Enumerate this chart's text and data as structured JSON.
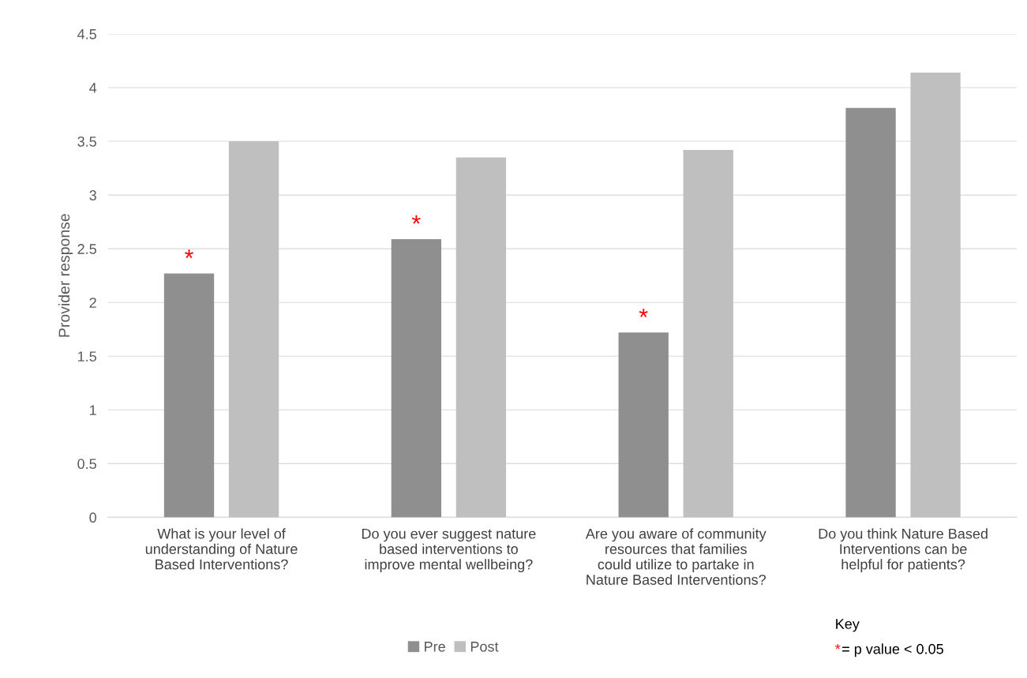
{
  "chart_data": {
    "type": "bar",
    "ylabel": "Provider response",
    "categories": [
      "What is your level of understanding of Nature Based Interventions?",
      "Do you ever suggest nature based interventions to improve mental wellbeing?",
      "Are you aware of community resources that families could utilize to partake in Nature Based Interventions?",
      "Do you think Nature Based Interventions can be helpful for patients?"
    ],
    "series": [
      {
        "name": "Pre",
        "color": "#8f8f8f",
        "values": [
          2.27,
          2.59,
          1.72,
          3.81
        ],
        "value_labels": [
          "*",
          "*",
          "*",
          null
        ]
      },
      {
        "name": "Post",
        "color": "#bfbfbf",
        "values": [
          3.5,
          3.35,
          3.42,
          4.14
        ]
      }
    ],
    "ylim": [
      0,
      4.5
    ],
    "yticks": [
      0,
      {
        "value": 0.5,
        "label": "0.5"
      },
      1,
      {
        "value": 1.5,
        "label": "1.5"
      },
      2,
      {
        "value": 2.5,
        "label": "2.5"
      },
      3,
      {
        "value": 3.5,
        "label": "3.5"
      },
      4,
      {
        "value": 4.5,
        "label": "4.5"
      }
    ],
    "grid": "y",
    "legend": "bottom",
    "annotations": [
      "Key",
      "*= p value < 0.05"
    ]
  }
}
